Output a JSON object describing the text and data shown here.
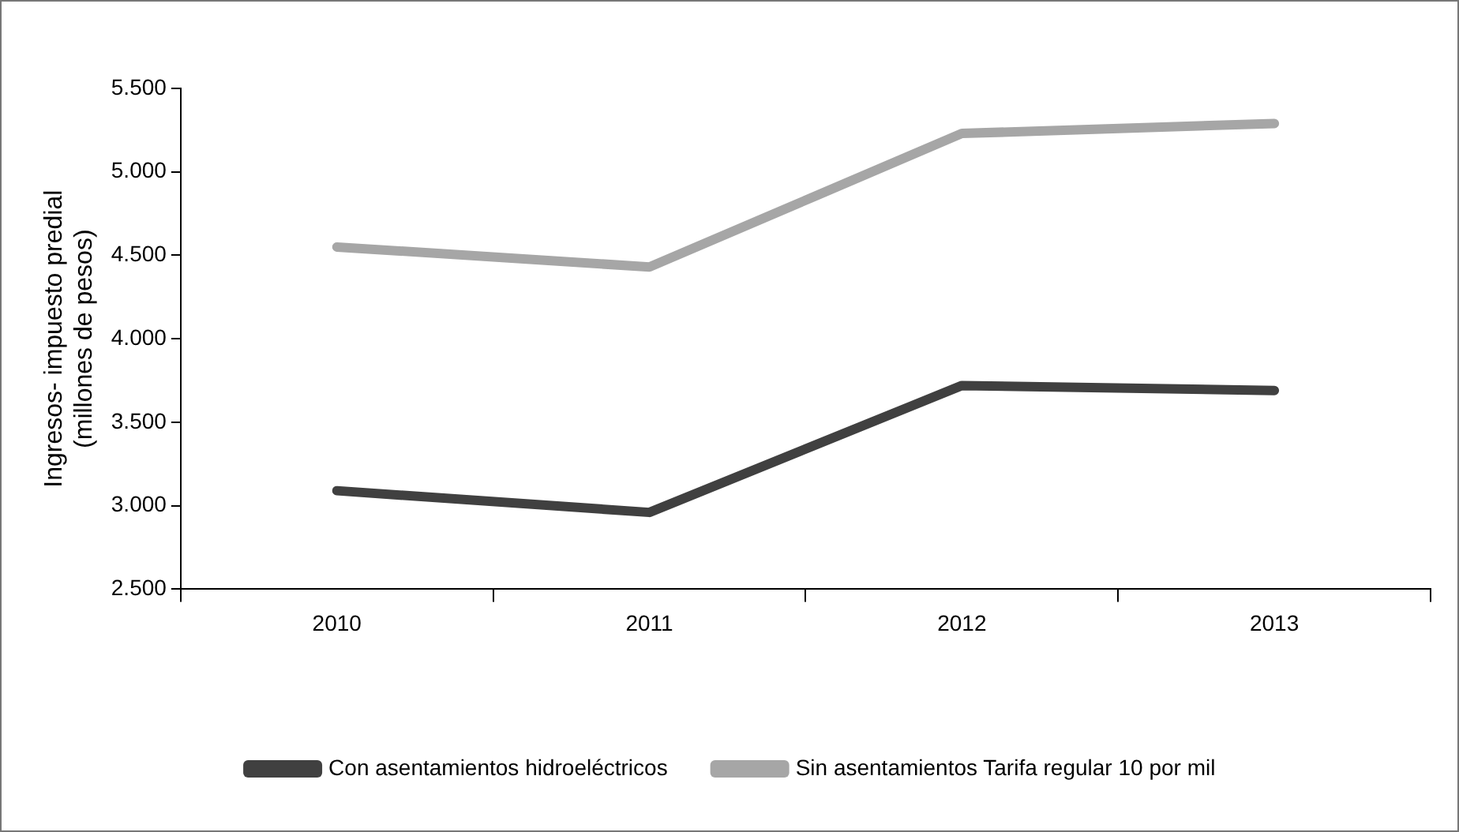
{
  "chart_data": {
    "type": "line",
    "ylabel": "Ingresos- impuesto predial\n(millones de pesos)",
    "categories": [
      "2010",
      "2011",
      "2012",
      "2013"
    ],
    "series": [
      {
        "name": "Con asentamientos hidroeléctricos",
        "color": "#404040",
        "values": [
          3090,
          2960,
          3720,
          3690
        ]
      },
      {
        "name": "Sin asentamientos Tarifa regular 10 por mil",
        "color": "#a6a6a6",
        "values": [
          4550,
          4430,
          5230,
          5290
        ]
      }
    ],
    "ylim": [
      2500,
      5500
    ],
    "yticks": [
      {
        "value": 2500,
        "label": "2.500"
      },
      {
        "value": 3000,
        "label": "3.000"
      },
      {
        "value": 3500,
        "label": "3.500"
      },
      {
        "value": 4000,
        "label": "4.000"
      },
      {
        "value": 4500,
        "label": "4.500"
      },
      {
        "value": 5000,
        "label": "5.000"
      },
      {
        "value": 5500,
        "label": "5.500"
      }
    ],
    "grid": false,
    "legend": "bottom",
    "marker": "none",
    "line_style": "solid"
  }
}
